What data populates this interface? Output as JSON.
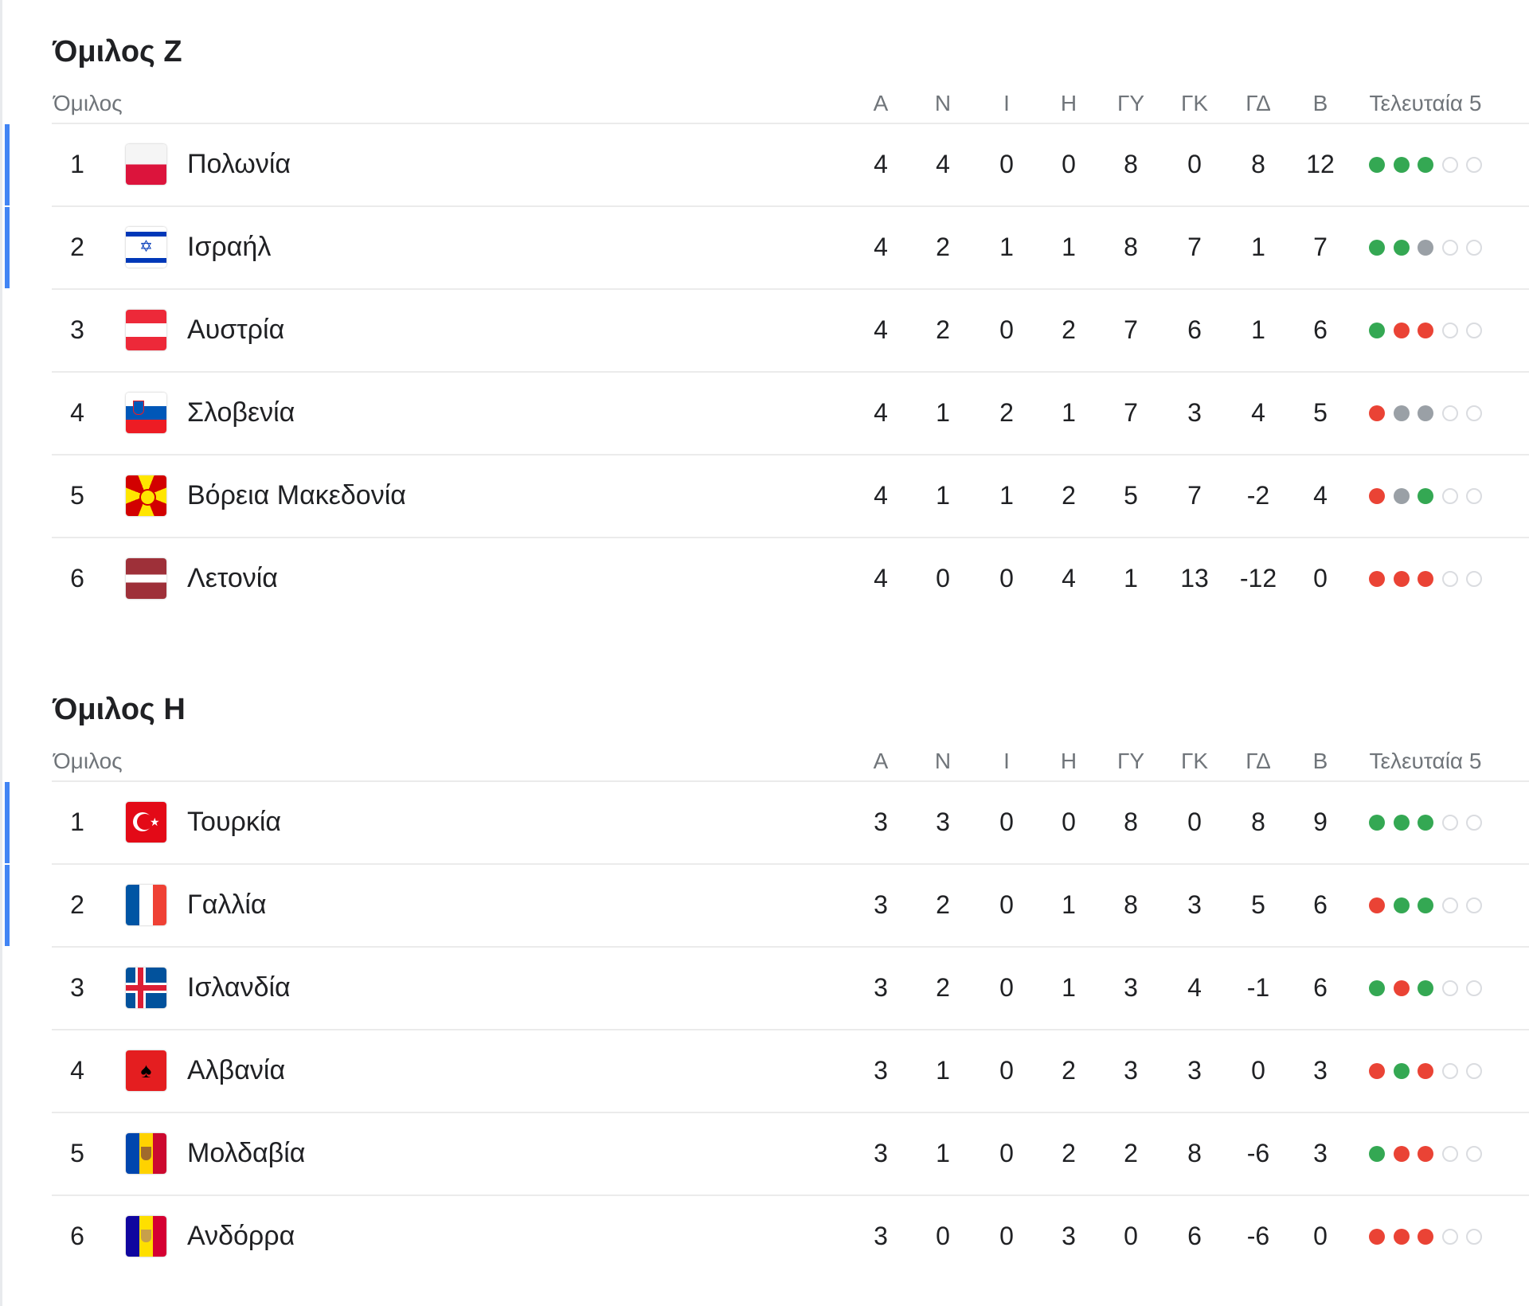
{
  "colors": {
    "win": "#34a853",
    "loss": "#ea4335",
    "draw": "#9aa0a6",
    "empty": "#dadce0",
    "qualified": "#4285f4"
  },
  "columns": {
    "group": "Όμιλος",
    "stats": [
      "Α",
      "Ν",
      "Ι",
      "Η",
      "ΓΥ",
      "ΓΚ",
      "ΓΔ",
      "Β"
    ],
    "last5": "Τελευταία 5"
  },
  "groups": [
    {
      "title": "Όμιλος Ζ",
      "rows": [
        {
          "rank": "1",
          "flag": "poland-flag",
          "team": "Πολωνία",
          "stats": [
            "4",
            "4",
            "0",
            "0",
            "8",
            "0",
            "8",
            "12"
          ],
          "form": [
            "W",
            "W",
            "W",
            "E",
            "E"
          ],
          "qualified": true
        },
        {
          "rank": "2",
          "flag": "israel-flag",
          "team": "Ισραήλ",
          "stats": [
            "4",
            "2",
            "1",
            "1",
            "8",
            "7",
            "1",
            "7"
          ],
          "form": [
            "W",
            "W",
            "D",
            "E",
            "E"
          ],
          "qualified": true
        },
        {
          "rank": "3",
          "flag": "austria-flag",
          "team": "Αυστρία",
          "stats": [
            "4",
            "2",
            "0",
            "2",
            "7",
            "6",
            "1",
            "6"
          ],
          "form": [
            "W",
            "L",
            "L",
            "E",
            "E"
          ],
          "qualified": false
        },
        {
          "rank": "4",
          "flag": "slovenia-flag",
          "team": "Σλοβενία",
          "stats": [
            "4",
            "1",
            "2",
            "1",
            "7",
            "3",
            "4",
            "5"
          ],
          "form": [
            "L",
            "D",
            "D",
            "E",
            "E"
          ],
          "qualified": false
        },
        {
          "rank": "5",
          "flag": "north-macedonia-flag",
          "team": "Βόρεια Μακεδονία",
          "stats": [
            "4",
            "1",
            "1",
            "2",
            "5",
            "7",
            "-2",
            "4"
          ],
          "form": [
            "L",
            "D",
            "W",
            "E",
            "E"
          ],
          "qualified": false
        },
        {
          "rank": "6",
          "flag": "latvia-flag",
          "team": "Λετονία",
          "stats": [
            "4",
            "0",
            "0",
            "4",
            "1",
            "13",
            "-12",
            "0"
          ],
          "form": [
            "L",
            "L",
            "L",
            "E",
            "E"
          ],
          "qualified": false
        }
      ]
    },
    {
      "title": "Όμιλος Η",
      "rows": [
        {
          "rank": "1",
          "flag": "turkey-flag",
          "team": "Τουρκία",
          "stats": [
            "3",
            "3",
            "0",
            "0",
            "8",
            "0",
            "8",
            "9"
          ],
          "form": [
            "W",
            "W",
            "W",
            "E",
            "E"
          ],
          "qualified": true
        },
        {
          "rank": "2",
          "flag": "france-flag",
          "team": "Γαλλία",
          "stats": [
            "3",
            "2",
            "0",
            "1",
            "8",
            "3",
            "5",
            "6"
          ],
          "form": [
            "L",
            "W",
            "W",
            "E",
            "E"
          ],
          "qualified": true
        },
        {
          "rank": "3",
          "flag": "iceland-flag",
          "team": "Ισλανδία",
          "stats": [
            "3",
            "2",
            "0",
            "1",
            "3",
            "4",
            "-1",
            "6"
          ],
          "form": [
            "W",
            "L",
            "W",
            "E",
            "E"
          ],
          "qualified": false
        },
        {
          "rank": "4",
          "flag": "albania-flag",
          "team": "Αλβανία",
          "stats": [
            "3",
            "1",
            "0",
            "2",
            "3",
            "3",
            "0",
            "3"
          ],
          "form": [
            "L",
            "W",
            "L",
            "E",
            "E"
          ],
          "qualified": false
        },
        {
          "rank": "5",
          "flag": "moldova-flag",
          "team": "Μολδαβία",
          "stats": [
            "3",
            "1",
            "0",
            "2",
            "2",
            "8",
            "-6",
            "3"
          ],
          "form": [
            "W",
            "L",
            "L",
            "E",
            "E"
          ],
          "qualified": false
        },
        {
          "rank": "6",
          "flag": "andorra-flag",
          "team": "Ανδόρρα",
          "stats": [
            "3",
            "0",
            "0",
            "3",
            "0",
            "6",
            "-6",
            "0"
          ],
          "form": [
            "L",
            "L",
            "L",
            "E",
            "E"
          ],
          "qualified": false
        }
      ]
    }
  ]
}
